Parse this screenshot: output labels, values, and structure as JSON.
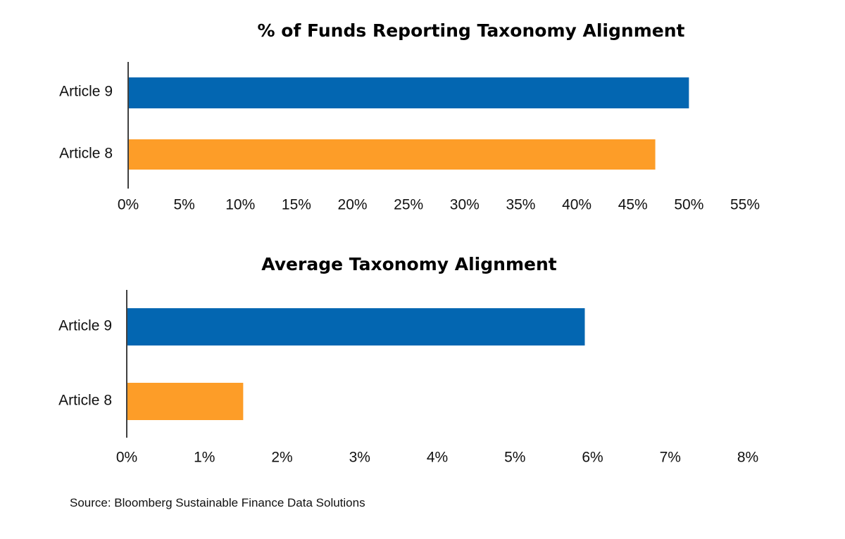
{
  "colors": {
    "article_9": "#0366b1",
    "article_8": "#fd9d28",
    "axis": "#000000"
  },
  "chart_data": [
    {
      "type": "bar",
      "orientation": "horizontal",
      "title": "% of Funds Reporting Taxonomy Alignment",
      "categories": [
        "Article 9",
        "Article 8"
      ],
      "values": [
        50,
        47
      ],
      "xlim": [
        0,
        55
      ],
      "ticks": [
        0,
        5,
        10,
        15,
        20,
        25,
        30,
        35,
        40,
        45,
        50,
        55
      ],
      "tick_labels": [
        "0%",
        "5%",
        "10%",
        "15%",
        "20%",
        "25%",
        "30%",
        "35%",
        "40%",
        "45%",
        "50%",
        "55%"
      ],
      "grid": false,
      "legend": "none"
    },
    {
      "type": "bar",
      "orientation": "horizontal",
      "title": "Average Taxonomy Alignment",
      "categories": [
        "Article 9",
        "Article 8"
      ],
      "values": [
        5.9,
        1.5
      ],
      "xlim": [
        0,
        8
      ],
      "ticks": [
        0,
        1,
        2,
        3,
        4,
        5,
        6,
        7,
        8
      ],
      "tick_labels": [
        "0%",
        "1%",
        "2%",
        "3%",
        "4%",
        "5%",
        "6%",
        "7%",
        "8%"
      ],
      "grid": false,
      "legend": "none"
    }
  ],
  "source": "Source: Bloomberg Sustainable Finance Data Solutions"
}
